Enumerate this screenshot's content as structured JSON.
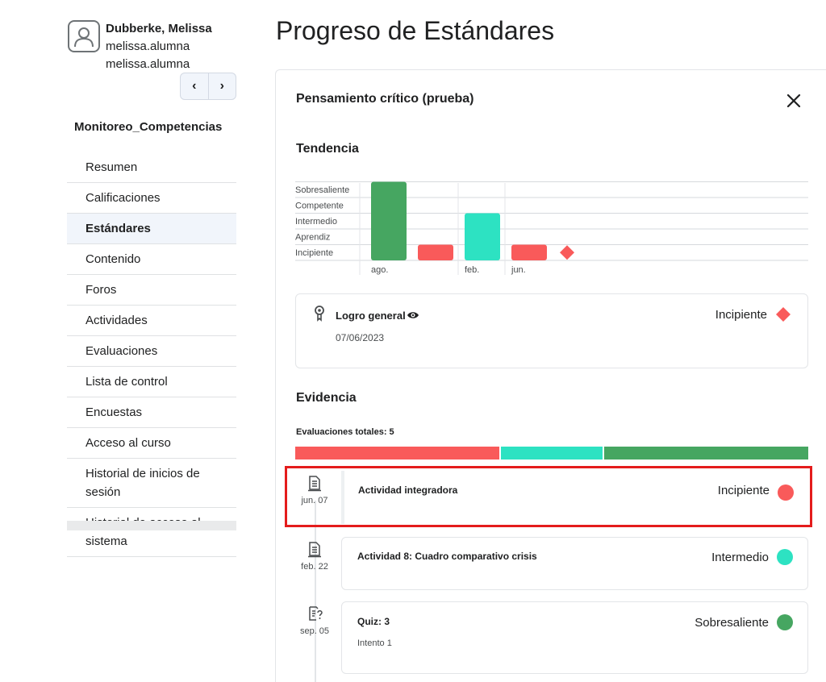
{
  "user": {
    "name": "Dubberke, Melissa",
    "line1": "melissa.alumna",
    "line2": "melissa.alumna"
  },
  "nav": {
    "prev": "‹",
    "next": "›"
  },
  "course_name": "Monitoreo_Competencias",
  "menu": [
    {
      "label": "Resumen"
    },
    {
      "label": "Calificaciones"
    },
    {
      "label": "Estándares"
    },
    {
      "label": "Contenido"
    },
    {
      "label": "Foros"
    },
    {
      "label": "Actividades"
    },
    {
      "label": "Evaluaciones"
    },
    {
      "label": "Lista de control"
    },
    {
      "label": "Encuestas"
    },
    {
      "label": "Acceso al curso"
    },
    {
      "label": "Historial de inicios de sesión"
    },
    {
      "label": "Historial de acceso al sistema"
    }
  ],
  "page_title": "Progreso de Estándares",
  "standard_title": "Pensamiento crítico (prueba)",
  "trend_heading": "Tendencia",
  "colors": {
    "incipiente": "#f95a5a",
    "intermedio": "#2de2c2",
    "sobresaliente": "#46a661"
  },
  "chart_data": {
    "type": "bar",
    "levels": [
      "Incipiente",
      "Aprendiz",
      "Intermedio",
      "Competente",
      "Sobresaliente"
    ],
    "groups": [
      {
        "label": "ago.",
        "bars": [
          {
            "level": "Sobresaliente"
          },
          {
            "level": "Incipiente"
          }
        ]
      },
      {
        "label": "feb.",
        "bars": [
          {
            "level": "Intermedio"
          }
        ]
      },
      {
        "label": "jun.",
        "bars": [
          {
            "level": "Incipiente"
          }
        ]
      }
    ],
    "overall_marker": {
      "level": "Incipiente",
      "shape": "diamond"
    }
  },
  "overall": {
    "label": "Logro general",
    "date": "07/06/2023",
    "level": "Incipiente"
  },
  "evidence_heading": "Evidencia",
  "evidence_total": "Evaluaciones totales: 5",
  "distribution": [
    {
      "level": "Incipiente",
      "count": 2
    },
    {
      "level": "Intermedio",
      "count": 1
    },
    {
      "level": "Sobresaliente",
      "count": 2
    }
  ],
  "evidence": [
    {
      "date": "jun. 07",
      "title": "Actividad integradora",
      "sub": "",
      "level": "Incipiente",
      "icon": "document-icon"
    },
    {
      "date": "feb. 22",
      "title": "Actividad 8: Cuadro comparativo crisis",
      "sub": "",
      "level": "Intermedio",
      "icon": "document-icon"
    },
    {
      "date": "sep. 05",
      "title": "Quiz: 3",
      "sub": "Intento 1",
      "level": "Sobresaliente",
      "icon": "quiz-icon"
    }
  ]
}
